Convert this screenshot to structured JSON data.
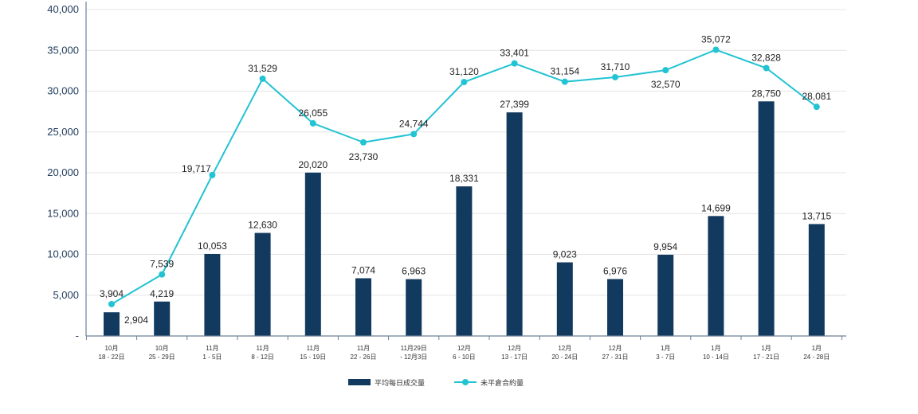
{
  "chart_data": {
    "type": "bar+line",
    "categories": [
      [
        "10月",
        "18 - 22日"
      ],
      [
        "10月",
        "25 - 29日"
      ],
      [
        "11月",
        "1 - 5日"
      ],
      [
        "11月",
        "8 - 12日"
      ],
      [
        "11月",
        "15 - 19日"
      ],
      [
        "11月",
        "22 - 26日"
      ],
      [
        "11月29日",
        "- 12月3日"
      ],
      [
        "12月",
        "6 - 10日"
      ],
      [
        "12月",
        "13 - 17日"
      ],
      [
        "12月",
        "20 - 24日"
      ],
      [
        "12月",
        "27 - 31日"
      ],
      [
        "1月",
        "3 - 7日"
      ],
      [
        "1月",
        "10 - 14日"
      ],
      [
        "1月",
        "17 - 21日"
      ],
      [
        "1月",
        "24 - 28日"
      ]
    ],
    "series": [
      {
        "name": "平均每日成交量",
        "type": "bar",
        "color": "#123a5e",
        "values": [
          2904,
          4219,
          10053,
          12630,
          20020,
          7074,
          6963,
          18331,
          27399,
          9023,
          6976,
          9954,
          14699,
          28750,
          13715
        ],
        "labels": [
          "2,904",
          "4,219",
          "10,053",
          "12,630",
          "20,020",
          "7,074",
          "6,963",
          "18,331",
          "27,399",
          "9,023",
          "6,976",
          "9,954",
          "14,699",
          "28,750",
          "13,715"
        ]
      },
      {
        "name": "未平倉合約量",
        "type": "line",
        "color": "#22c3d3",
        "values": [
          3904,
          7539,
          19717,
          31529,
          26055,
          23730,
          24744,
          31120,
          33401,
          31154,
          31710,
          32570,
          35072,
          32828,
          28081
        ],
        "labels": [
          "3,904",
          "7,539",
          "19,717",
          "31,529",
          "26,055",
          "23,730",
          "24,744",
          "31,120",
          "33,401",
          "31,154",
          "31,710",
          "32,570",
          "35,072",
          "32,828",
          "28,081"
        ]
      }
    ],
    "y_ticks": [
      "-",
      "5,000",
      "10,000",
      "15,000",
      "20,000",
      "25,000",
      "30,000",
      "35,000",
      "40,000"
    ],
    "ylim": [
      0,
      40000
    ],
    "grid": true,
    "legend": "bottom-center"
  }
}
